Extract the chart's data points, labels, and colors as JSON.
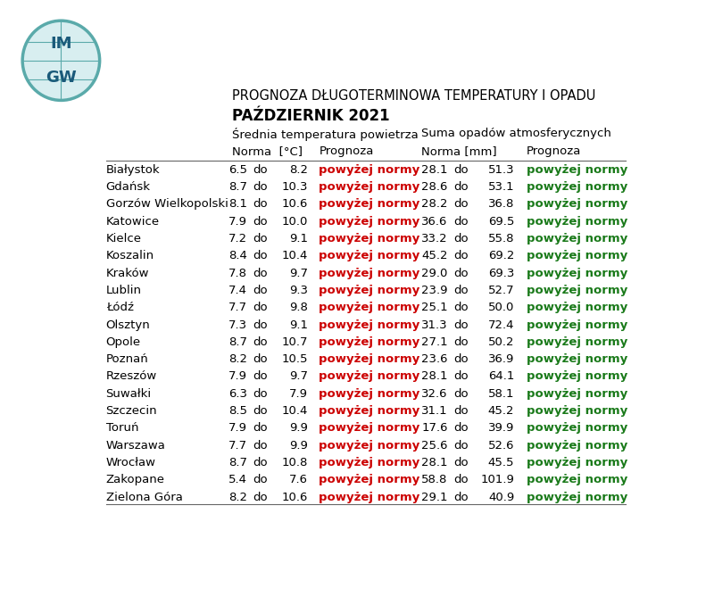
{
  "title_line1": "PROGNOZA DŁUGOTERMINOWA TEMPERATURY I OPADU",
  "title_line2": "PAŹDZIERNIK 2021",
  "header_temp": "Średnia temperatura powietrza",
  "header_precip": "Suma opadów atmosferycznych",
  "subheader_temp_norma": "Norma  [°C]",
  "subheader_temp_prognoza": "Prognoza",
  "subheader_precip_norma": "Norma [mm]",
  "subheader_precip_prognoza": "Prognoza",
  "cities": [
    "Białystok",
    "Gdańsk",
    "Gorzów Wielkopolski",
    "Katowice",
    "Kielce",
    "Koszalin",
    "Kraków",
    "Lublin",
    "Łódź",
    "Olsztyn",
    "Opole",
    "Poznań",
    "Rzeszów",
    "Suwałki",
    "Szczecin",
    "Toruń",
    "Warszawa",
    "Wrocław",
    "Zakopane",
    "Zielona Góra"
  ],
  "temp_norma_low": [
    6.5,
    8.7,
    8.1,
    7.9,
    7.2,
    8.4,
    7.8,
    7.4,
    7.7,
    7.3,
    8.7,
    8.2,
    7.9,
    6.3,
    8.5,
    7.9,
    7.7,
    8.7,
    5.4,
    8.2
  ],
  "temp_norma_high": [
    8.2,
    10.3,
    10.6,
    10.0,
    9.1,
    10.4,
    9.7,
    9.3,
    9.8,
    9.1,
    10.7,
    10.5,
    9.7,
    7.9,
    10.4,
    9.9,
    9.9,
    10.8,
    7.6,
    10.6
  ],
  "temp_prognoza": "powyżej normy",
  "precip_norma_low": [
    28.1,
    28.6,
    28.2,
    36.6,
    33.2,
    45.2,
    29.0,
    23.9,
    25.1,
    31.3,
    27.1,
    23.6,
    28.1,
    32.6,
    31.1,
    17.6,
    25.6,
    28.1,
    58.8,
    29.1
  ],
  "precip_norma_high": [
    51.3,
    53.1,
    36.8,
    69.5,
    55.8,
    69.2,
    69.3,
    52.7,
    50.0,
    72.4,
    50.2,
    36.9,
    64.1,
    58.1,
    45.2,
    39.9,
    52.6,
    45.5,
    101.9,
    40.9
  ],
  "precip_prognoza": "powyżej normy",
  "temp_prognoza_color": "#cc0000",
  "precip_prognoza_color": "#1a7a1a",
  "bg_color": "#ffffff",
  "text_color": "#000000",
  "line_color": "#666666",
  "font_size_title1": 10.5,
  "font_size_title2": 12,
  "font_size_header": 9.5,
  "font_size_data": 9.5
}
